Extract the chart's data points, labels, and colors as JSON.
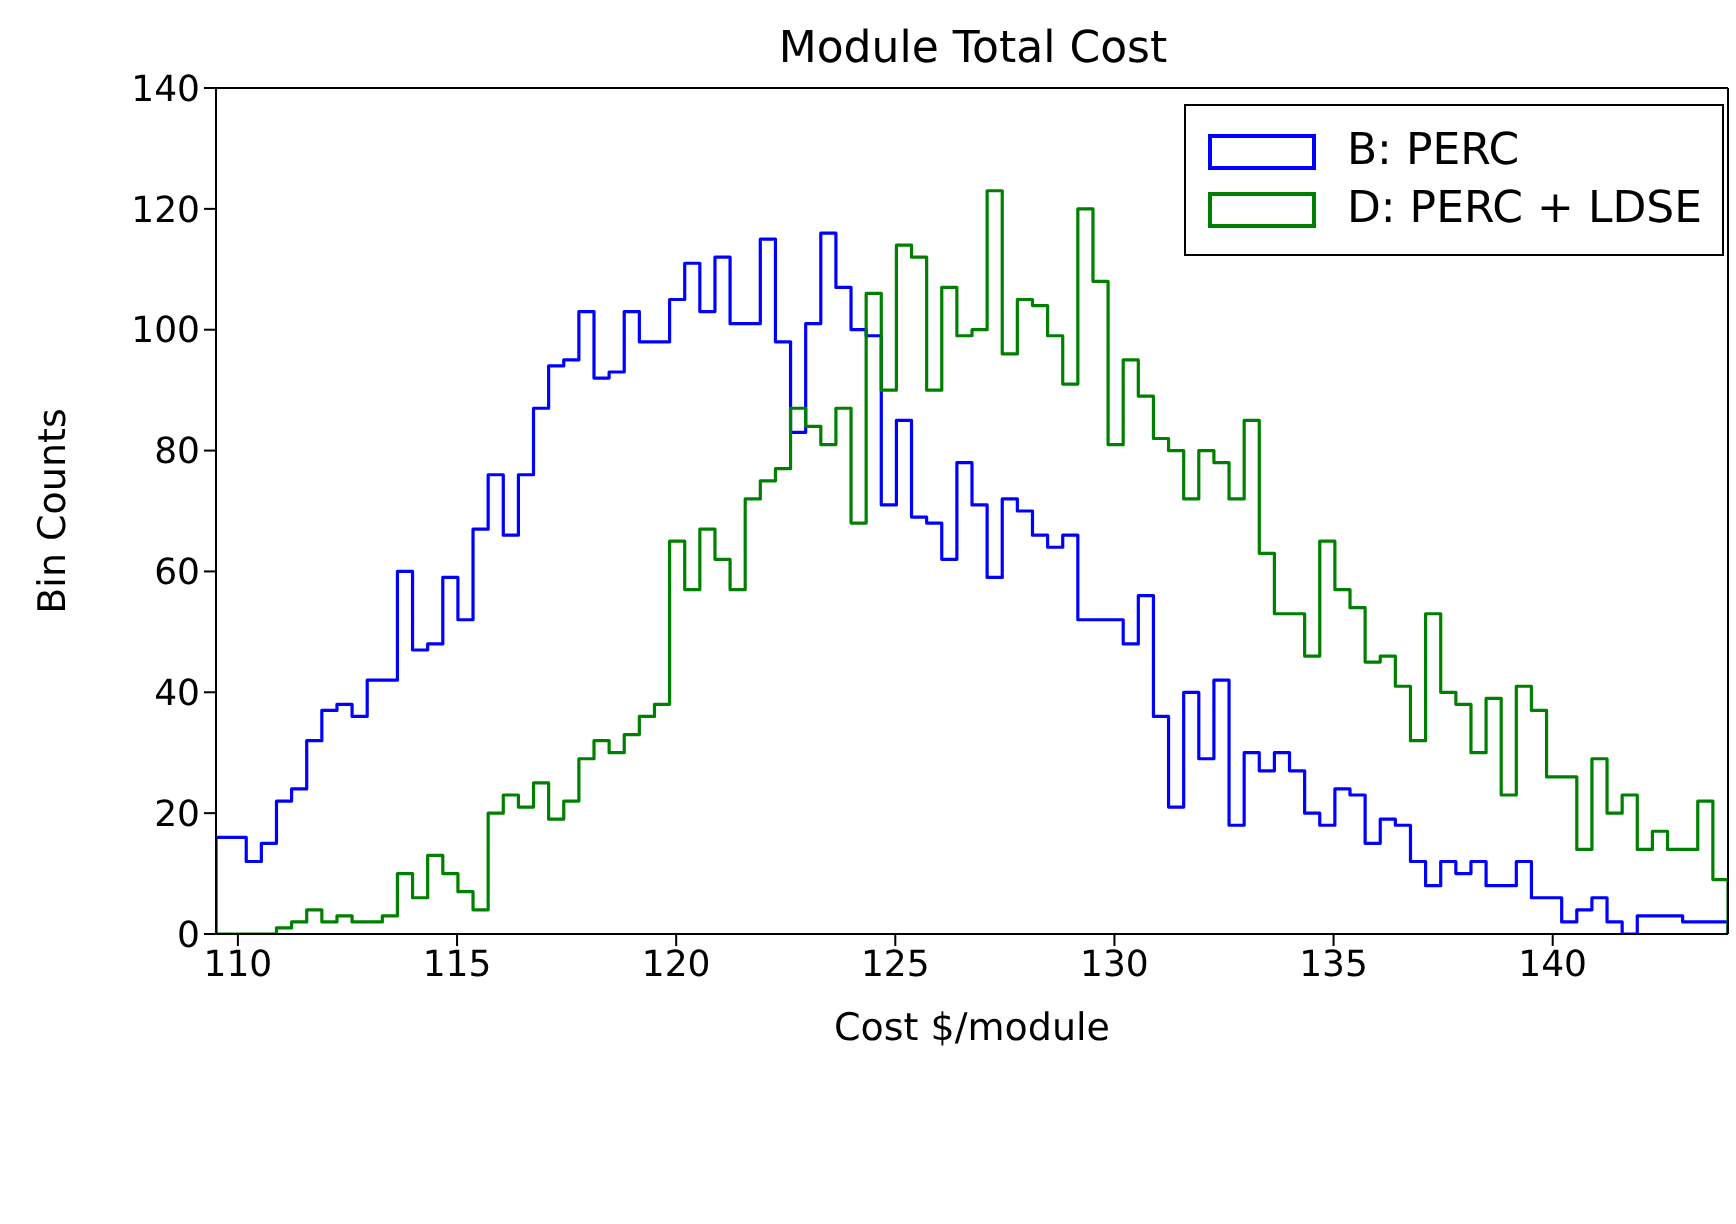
{
  "chart_data": {
    "type": "histogram",
    "title": "Module Total Cost",
    "xlabel": "Cost $/module",
    "ylabel": "Bin Counts",
    "bins": [
      109.5,
      109.845,
      110.19,
      110.535,
      110.88,
      111.225,
      111.57,
      111.915,
      112.26,
      112.605,
      112.95,
      113.295,
      113.64,
      113.985,
      114.33,
      114.675,
      115.02,
      115.365,
      115.71,
      116.055,
      116.4,
      116.745,
      117.09,
      117.435,
      117.78,
      118.125,
      118.47,
      118.815,
      119.16,
      119.505,
      119.85,
      120.195,
      120.54,
      120.885,
      121.23,
      121.575,
      121.92,
      122.265,
      122.61,
      122.955,
      123.3,
      123.645,
      123.99,
      124.335,
      124.68,
      125.025,
      125.37,
      125.715,
      126.06,
      126.405,
      126.75,
      127.095,
      127.44,
      127.785,
      128.13,
      128.475,
      128.82,
      129.165,
      129.51,
      129.855,
      130.2,
      130.545,
      130.89,
      131.235,
      131.58,
      131.925,
      132.27,
      132.615,
      132.96,
      133.305,
      133.65,
      133.995,
      134.34,
      134.685,
      135.03,
      135.375,
      135.72,
      136.065,
      136.41,
      136.755,
      137.1,
      137.445,
      137.79,
      138.135,
      138.48,
      138.825,
      139.17,
      139.515,
      139.86,
      140.205,
      140.55,
      140.895,
      141.24,
      141.585,
      141.93,
      142.275,
      142.62,
      142.965,
      143.31,
      143.655,
      144.0
    ],
    "series": [
      {
        "name": "B: PERC",
        "color": "#0000ff",
        "values": [
          16,
          16,
          12,
          15,
          22,
          24,
          32,
          37,
          38,
          36,
          42,
          42,
          60,
          47,
          48,
          59,
          52,
          67,
          76,
          66,
          76,
          87,
          94,
          95,
          103,
          92,
          93,
          103,
          98,
          98,
          105,
          111,
          103,
          112,
          101,
          101,
          115,
          98,
          83,
          101,
          116,
          107,
          100,
          99,
          71,
          85,
          69,
          68,
          62,
          78,
          71,
          59,
          72,
          70,
          66,
          64,
          66,
          52,
          52,
          52,
          48,
          56,
          36,
          21,
          40,
          29,
          42,
          18,
          30,
          27,
          30,
          27,
          20,
          18,
          24,
          23,
          15,
          19,
          18,
          12,
          8,
          12,
          10,
          12,
          8,
          8,
          12,
          6,
          6,
          2,
          4,
          6,
          2,
          0,
          3,
          3,
          3,
          2,
          2,
          2
        ]
      },
      {
        "name": "D: PERC + LDSE",
        "color": "#008000",
        "values": [
          0,
          0,
          0,
          0,
          1,
          2,
          4,
          2,
          3,
          2,
          2,
          3,
          10,
          6,
          13,
          10,
          7,
          4,
          20,
          23,
          21,
          25,
          19,
          22,
          29,
          32,
          30,
          33,
          36,
          38,
          65,
          57,
          67,
          62,
          57,
          72,
          75,
          77,
          87,
          84,
          81,
          87,
          68,
          106,
          90,
          114,
          112,
          90,
          107,
          99,
          100,
          123,
          96,
          105,
          104,
          99,
          91,
          120,
          108,
          81,
          95,
          89,
          82,
          80,
          72,
          80,
          78,
          72,
          85,
          63,
          53,
          53,
          46,
          65,
          57,
          54,
          45,
          46,
          41,
          32,
          53,
          40,
          38,
          30,
          39,
          23,
          41,
          37,
          26,
          26,
          14,
          29,
          20,
          23,
          14,
          17,
          14,
          14,
          22,
          9
        ]
      }
    ],
    "xlim": [
      109.5,
      144
    ],
    "xticks": [
      110,
      115,
      120,
      125,
      130,
      135,
      140
    ],
    "ylim": [
      0,
      140
    ],
    "yticks": [
      0,
      20,
      40,
      60,
      80,
      100,
      120,
      140
    ],
    "legend": "top right"
  }
}
